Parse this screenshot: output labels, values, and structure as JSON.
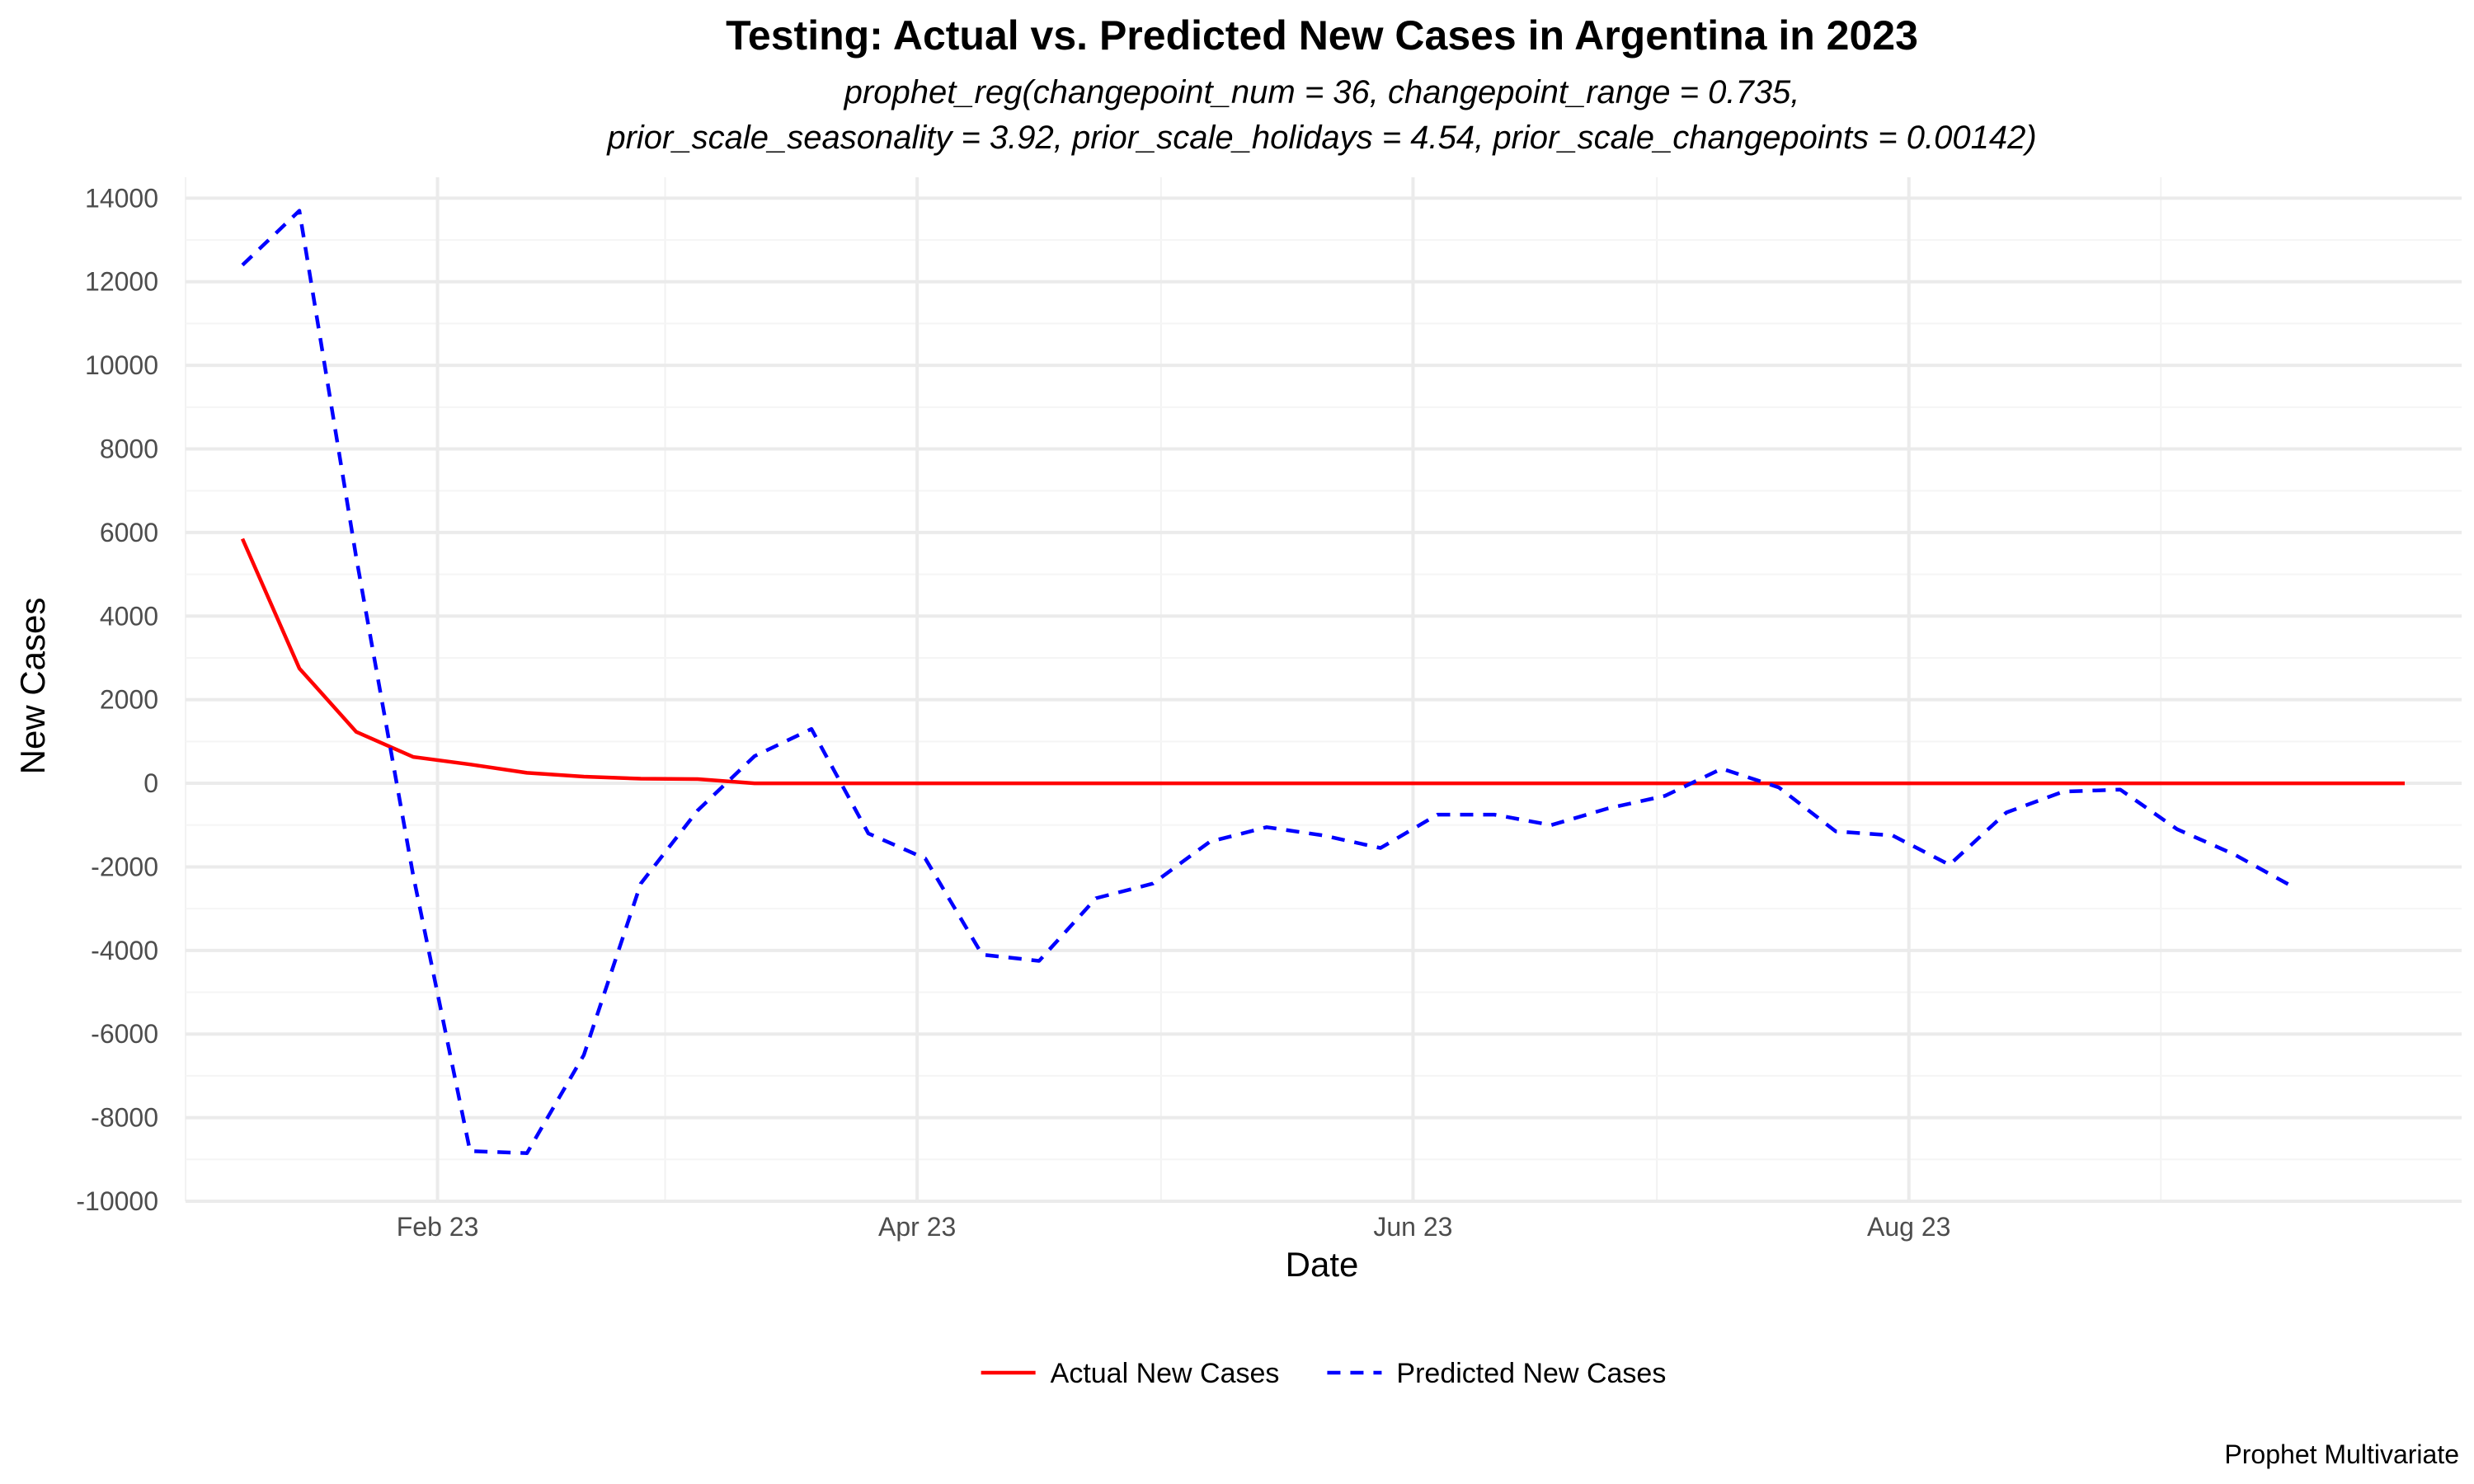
{
  "chart_data": {
    "type": "line",
    "title": "Testing: Actual vs. Predicted New Cases in Argentina in 2023",
    "subtitle_lines": [
      "prophet_reg(changepoint_num = 36, changepoint_range = 0.735,",
      "prior_scale_seasonality = 3.92, prior_scale_holidays = 4.54, prior_scale_changepoints = 0.00142)"
    ],
    "xlabel": "Date",
    "ylabel": "New Cases",
    "caption": "Prophet Multivariate",
    "x_type": "date",
    "xlim": [
      "2023-01-01",
      "2023-10-08"
    ],
    "ylim": [
      -10000,
      14500
    ],
    "x_ticks": [
      {
        "date": "2023-02-01",
        "label": "Feb 23"
      },
      {
        "date": "2023-04-01",
        "label": "Apr 23"
      },
      {
        "date": "2023-06-01",
        "label": "Jun 23"
      },
      {
        "date": "2023-08-01",
        "label": "Aug 23"
      }
    ],
    "y_ticks": [
      {
        "value": 14000,
        "label": "14000"
      },
      {
        "value": 12000,
        "label": "12000"
      },
      {
        "value": 10000,
        "label": "10000"
      },
      {
        "value": 8000,
        "label": "8000"
      },
      {
        "value": 6000,
        "label": "6000"
      },
      {
        "value": 4000,
        "label": "4000"
      },
      {
        "value": 2000,
        "label": "2000"
      },
      {
        "value": 0,
        "label": "0"
      },
      {
        "value": -2000,
        "label": "-2000"
      },
      {
        "value": -4000,
        "label": "-4000"
      },
      {
        "value": -6000,
        "label": "-6000"
      },
      {
        "value": -8000,
        "label": "-8000"
      },
      {
        "value": -10000,
        "label": "-10000"
      }
    ],
    "grid": true,
    "legend_position": "bottom",
    "series": [
      {
        "name": "Actual New Cases",
        "color": "#ff0000",
        "dash": "solid",
        "points": [
          {
            "x": "2023-01-08",
            "y": 5850
          },
          {
            "x": "2023-01-15",
            "y": 2750
          },
          {
            "x": "2023-01-22",
            "y": 1230
          },
          {
            "x": "2023-01-29",
            "y": 630
          },
          {
            "x": "2023-02-05",
            "y": 450
          },
          {
            "x": "2023-02-12",
            "y": 250
          },
          {
            "x": "2023-02-19",
            "y": 160
          },
          {
            "x": "2023-02-26",
            "y": 110
          },
          {
            "x": "2023-03-05",
            "y": 100
          },
          {
            "x": "2023-03-12",
            "y": 0
          },
          {
            "x": "2023-03-19",
            "y": 0
          },
          {
            "x": "2023-03-26",
            "y": 0
          },
          {
            "x": "2023-04-02",
            "y": 0
          },
          {
            "x": "2023-04-09",
            "y": 0
          },
          {
            "x": "2023-04-16",
            "y": 0
          },
          {
            "x": "2023-04-23",
            "y": 0
          },
          {
            "x": "2023-04-30",
            "y": 0
          },
          {
            "x": "2023-05-07",
            "y": 0
          },
          {
            "x": "2023-05-14",
            "y": 0
          },
          {
            "x": "2023-05-21",
            "y": 0
          },
          {
            "x": "2023-05-28",
            "y": 0
          },
          {
            "x": "2023-06-04",
            "y": 0
          },
          {
            "x": "2023-06-11",
            "y": 0
          },
          {
            "x": "2023-06-18",
            "y": 0
          },
          {
            "x": "2023-06-25",
            "y": 0
          },
          {
            "x": "2023-07-02",
            "y": 0
          },
          {
            "x": "2023-07-09",
            "y": 0
          },
          {
            "x": "2023-07-16",
            "y": 0
          },
          {
            "x": "2023-07-23",
            "y": 0
          },
          {
            "x": "2023-07-30",
            "y": 0
          },
          {
            "x": "2023-08-06",
            "y": 0
          },
          {
            "x": "2023-08-13",
            "y": 0
          },
          {
            "x": "2023-08-20",
            "y": 0
          },
          {
            "x": "2023-08-27",
            "y": 0
          },
          {
            "x": "2023-09-03",
            "y": 0
          },
          {
            "x": "2023-09-10",
            "y": 0
          },
          {
            "x": "2023-09-17",
            "y": 0
          },
          {
            "x": "2023-09-24",
            "y": 0
          },
          {
            "x": "2023-10-01",
            "y": 0
          }
        ]
      },
      {
        "name": "Predicted New Cases",
        "color": "#0000ff",
        "dash": "dashed",
        "points": [
          {
            "x": "2023-01-08",
            "y": 12400
          },
          {
            "x": "2023-01-15",
            "y": 13700
          },
          {
            "x": "2023-01-22",
            "y": 5400
          },
          {
            "x": "2023-01-29",
            "y": -2200
          },
          {
            "x": "2023-02-05",
            "y": -8800
          },
          {
            "x": "2023-02-12",
            "y": -8850
          },
          {
            "x": "2023-02-19",
            "y": -6500
          },
          {
            "x": "2023-02-26",
            "y": -2400
          },
          {
            "x": "2023-03-05",
            "y": -650
          },
          {
            "x": "2023-03-12",
            "y": 650
          },
          {
            "x": "2023-03-19",
            "y": 1300
          },
          {
            "x": "2023-03-26",
            "y": -1200
          },
          {
            "x": "2023-04-02",
            "y": -1800
          },
          {
            "x": "2023-04-09",
            "y": -4100
          },
          {
            "x": "2023-04-16",
            "y": -4250
          },
          {
            "x": "2023-04-23",
            "y": -2750
          },
          {
            "x": "2023-04-30",
            "y": -2400
          },
          {
            "x": "2023-05-07",
            "y": -1400
          },
          {
            "x": "2023-05-14",
            "y": -1050
          },
          {
            "x": "2023-05-21",
            "y": -1250
          },
          {
            "x": "2023-05-28",
            "y": -1550
          },
          {
            "x": "2023-06-04",
            "y": -750
          },
          {
            "x": "2023-06-11",
            "y": -750
          },
          {
            "x": "2023-06-18",
            "y": -1000
          },
          {
            "x": "2023-06-25",
            "y": -600
          },
          {
            "x": "2023-07-02",
            "y": -300
          },
          {
            "x": "2023-07-09",
            "y": 350
          },
          {
            "x": "2023-07-16",
            "y": -100
          },
          {
            "x": "2023-07-23",
            "y": -1150
          },
          {
            "x": "2023-07-30",
            "y": -1250
          },
          {
            "x": "2023-08-06",
            "y": -1950
          },
          {
            "x": "2023-08-13",
            "y": -700
          },
          {
            "x": "2023-08-20",
            "y": -200
          },
          {
            "x": "2023-08-27",
            "y": -150
          },
          {
            "x": "2023-09-03",
            "y": -1100
          },
          {
            "x": "2023-09-10",
            "y": -1700
          },
          {
            "x": "2023-09-17",
            "y": -2450
          }
        ]
      }
    ]
  }
}
